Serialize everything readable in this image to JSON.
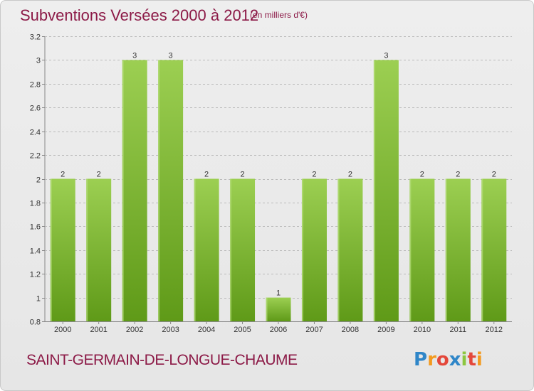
{
  "header": {
    "title": "Subventions Versées 2000 à 2012",
    "subtitle": "(en milliers d'€)"
  },
  "footer": {
    "commune": "SAINT-GERMAIN-DE-LONGUE-CHAUME",
    "logo_letters": [
      "P",
      "r",
      "o",
      "x",
      "i",
      "t",
      "i"
    ],
    "logo_colors": [
      "#2f86c8",
      "#f39a1e",
      "#e4473a",
      "#2f86c8",
      "#8cc63f",
      "#e4473a",
      "#f39a1e"
    ]
  },
  "colors": {
    "bar_top": "#9ccf52",
    "bar_bottom": "#5f9a18",
    "title": "#8c1a47",
    "grid": "#bbbbbb"
  },
  "chart_data": {
    "type": "bar",
    "categories": [
      "2000",
      "2001",
      "2002",
      "2003",
      "2004",
      "2005",
      "2006",
      "2007",
      "2008",
      "2009",
      "2010",
      "2011",
      "2012"
    ],
    "values": [
      2,
      2,
      3,
      3,
      2,
      2,
      1,
      2,
      2,
      3,
      2,
      2,
      2
    ],
    "data_labels": [
      "2",
      "2",
      "3",
      "3",
      "2",
      "2",
      "1",
      "2",
      "2",
      "3",
      "2",
      "2",
      "2"
    ],
    "y_ticks": [
      0.8,
      1,
      1.2,
      1.4,
      1.6,
      1.8,
      2,
      2.2,
      2.4,
      2.6,
      2.8,
      3,
      3.2
    ],
    "y_tick_labels": [
      "0.8",
      "1",
      "1.2",
      "1.4",
      "1.6",
      "1.8",
      "2",
      "2.2",
      "2.4",
      "2.6",
      "2.8",
      "3",
      "3.2"
    ],
    "ylim": [
      0.8,
      3.2
    ],
    "grid": "horizontal dashed"
  }
}
